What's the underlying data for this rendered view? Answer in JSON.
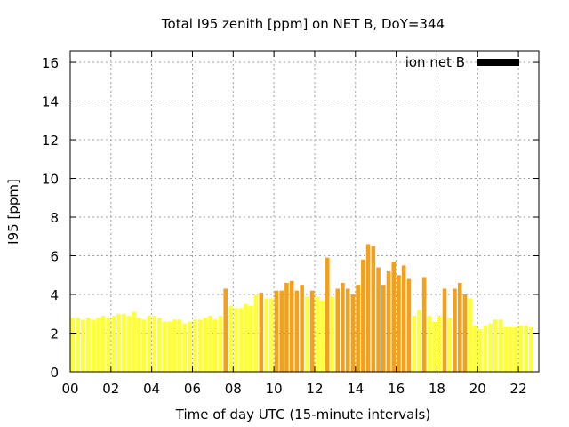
{
  "chart_data": {
    "type": "bar",
    "title": "Total I95 zenith [ppm] on NET B, DoY=344",
    "xlabel": "Time of day UTC (15-minute intervals)",
    "ylabel": "I95 [ppm]",
    "xlim": [
      0,
      23
    ],
    "ylim": [
      0,
      16.6
    ],
    "xticks": [
      "00",
      "02",
      "04",
      "06",
      "08",
      "10",
      "12",
      "14",
      "16",
      "18",
      "20",
      "22"
    ],
    "xtick_values": [
      0,
      2,
      4,
      6,
      8,
      10,
      12,
      14,
      16,
      18,
      20,
      22
    ],
    "yticks": [
      "0",
      "2",
      "4",
      "6",
      "8",
      "10",
      "12",
      "14",
      "16"
    ],
    "ytick_values": [
      0,
      2,
      4,
      6,
      8,
      10,
      12,
      14,
      16
    ],
    "grid": true,
    "legend": {
      "label": "ion net B",
      "color": "#000000",
      "placement": "top-right"
    },
    "interval_hours": 0.25,
    "colors": {
      "yellow": "#ffff33",
      "orange": "#f5a01a"
    },
    "values": [
      2.8,
      2.8,
      2.7,
      2.8,
      2.7,
      2.8,
      2.9,
      2.8,
      2.9,
      3.0,
      3.0,
      2.9,
      3.1,
      2.8,
      2.7,
      2.9,
      2.9,
      2.8,
      2.6,
      2.6,
      2.7,
      2.7,
      2.5,
      2.6,
      2.7,
      2.7,
      2.8,
      2.9,
      2.7,
      2.9,
      4.3,
      3.4,
      3.3,
      3.3,
      3.5,
      3.4,
      4.0,
      4.1,
      3.8,
      3.8,
      4.2,
      4.2,
      4.6,
      4.7,
      4.2,
      4.5,
      3.9,
      4.2,
      3.9,
      3.7,
      5.9,
      3.9,
      4.3,
      4.6,
      4.3,
      4.0,
      4.5,
      5.8,
      6.6,
      6.5,
      5.4,
      4.5,
      5.2,
      5.7,
      5.0,
      5.5,
      4.8,
      2.9,
      3.2,
      4.9,
      2.9,
      2.6,
      2.9,
      4.3,
      2.8,
      4.3,
      4.6,
      4.0,
      3.8,
      2.4,
      2.2,
      2.4,
      2.5,
      2.7,
      2.7,
      2.3,
      2.3,
      2.3,
      2.4,
      2.4,
      2.3
    ],
    "highlight": [
      0,
      0,
      0,
      0,
      0,
      0,
      0,
      0,
      0,
      0,
      0,
      0,
      0,
      0,
      0,
      0,
      0,
      0,
      0,
      0,
      0,
      0,
      0,
      0,
      0,
      0,
      0,
      0,
      0,
      0,
      1,
      0,
      0,
      0,
      0,
      0,
      0,
      1,
      0,
      0,
      1,
      1,
      1,
      1,
      1,
      1,
      0,
      1,
      0,
      0,
      1,
      0,
      1,
      1,
      1,
      1,
      1,
      1,
      1,
      1,
      1,
      1,
      1,
      1,
      1,
      1,
      1,
      0,
      0,
      1,
      0,
      0,
      0,
      1,
      0,
      1,
      1,
      1,
      0,
      0,
      0,
      0,
      0,
      0,
      0,
      0,
      0,
      0,
      0,
      0,
      0
    ]
  }
}
